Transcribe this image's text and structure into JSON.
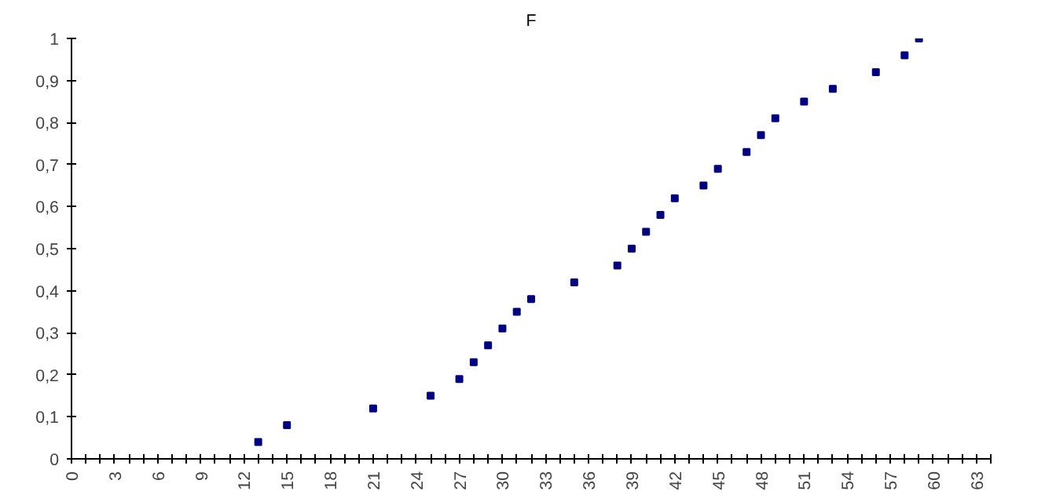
{
  "chart_data": {
    "type": "scatter",
    "title": "F",
    "marker": "square",
    "grid": false,
    "x": [
      13,
      15,
      21,
      25,
      27,
      28,
      29,
      30,
      31,
      32,
      35,
      38,
      39,
      40,
      41,
      42,
      44,
      45,
      47,
      48,
      49,
      51,
      53,
      56,
      58,
      59
    ],
    "series": [
      {
        "color": "#000080",
        "values": [
          0.04,
          0.08,
          0.12,
          0.15,
          0.19,
          0.23,
          0.27,
          0.31,
          0.35,
          0.38,
          0.42,
          0.46,
          0.5,
          0.54,
          0.58,
          0.62,
          0.65,
          0.69,
          0.73,
          0.77,
          0.81,
          0.85,
          0.88,
          0.92,
          0.96,
          1
        ]
      }
    ],
    "xlim": [
      0,
      64
    ],
    "xticks": [
      0,
      {
        "value": 1,
        "label": null
      },
      {
        "value": 2,
        "label": null
      },
      3,
      {
        "value": 4,
        "label": null
      },
      {
        "value": 5,
        "label": null
      },
      6,
      {
        "value": 7,
        "label": null
      },
      {
        "value": 8,
        "label": null
      },
      9,
      {
        "value": 10,
        "label": null
      },
      {
        "value": 11,
        "label": null
      },
      12,
      {
        "value": 13,
        "label": null
      },
      {
        "value": 14,
        "label": null
      },
      15,
      {
        "value": 16,
        "label": null
      },
      {
        "value": 17,
        "label": null
      },
      18,
      {
        "value": 19,
        "label": null
      },
      {
        "value": 20,
        "label": null
      },
      21,
      {
        "value": 22,
        "label": null
      },
      {
        "value": 23,
        "label": null
      },
      24,
      {
        "value": 25,
        "label": null
      },
      {
        "value": 26,
        "label": null
      },
      27,
      {
        "value": 28,
        "label": null
      },
      {
        "value": 29,
        "label": null
      },
      30,
      {
        "value": 31,
        "label": null
      },
      {
        "value": 32,
        "label": null
      },
      33,
      {
        "value": 34,
        "label": null
      },
      {
        "value": 35,
        "label": null
      },
      36,
      {
        "value": 37,
        "label": null
      },
      {
        "value": 38,
        "label": null
      },
      39,
      {
        "value": 40,
        "label": null
      },
      {
        "value": 41,
        "label": null
      },
      42,
      {
        "value": 43,
        "label": null
      },
      {
        "value": 44,
        "label": null
      },
      45,
      {
        "value": 46,
        "label": null
      },
      {
        "value": 47,
        "label": null
      },
      48,
      {
        "value": 49,
        "label": null
      },
      {
        "value": 50,
        "label": null
      },
      51,
      {
        "value": 52,
        "label": null
      },
      {
        "value": 53,
        "label": null
      },
      54,
      {
        "value": 55,
        "label": null
      },
      {
        "value": 56,
        "label": null
      },
      57,
      {
        "value": 58,
        "label": null
      },
      {
        "value": 59,
        "label": null
      },
      60,
      {
        "value": 61,
        "label": null
      },
      {
        "value": 62,
        "label": null
      },
      63,
      {
        "value": 64,
        "label": null
      }
    ],
    "ylim": [
      0,
      1
    ],
    "yticks": [
      0,
      {
        "value": 0.1,
        "label": "0,1"
      },
      {
        "value": 0.2,
        "label": "0,2"
      },
      {
        "value": 0.3,
        "label": "0,3"
      },
      {
        "value": 0.4,
        "label": "0,4"
      },
      {
        "value": 0.5,
        "label": "0,5"
      },
      {
        "value": 0.6,
        "label": "0,6"
      },
      {
        "value": 0.7,
        "label": "0,7"
      },
      {
        "value": 0.8,
        "label": "0,8"
      },
      {
        "value": 0.9,
        "label": "0,9"
      },
      1
    ]
  }
}
